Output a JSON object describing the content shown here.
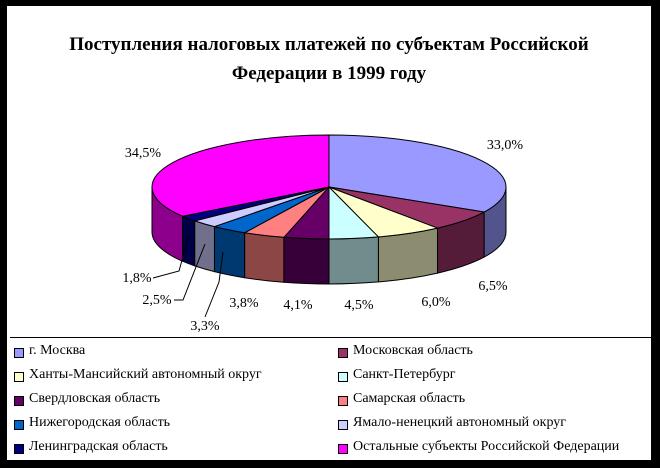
{
  "chart_data": {
    "type": "pie",
    "title": "Поступления налоговых платежей по субъектам Российской Федерации в 1999 году",
    "title_lines": [
      "Поступления налоговых платежей по субъектам Российской",
      "Федерации в 1999 году"
    ],
    "style": "3d",
    "legend_position": "bottom",
    "slices": [
      {
        "name": "г. Москва",
        "value": 33.0,
        "label": "33,0%",
        "color": "#9999FF"
      },
      {
        "name": "Московская область",
        "value": 6.5,
        "label": "6,5%",
        "color": "#993366"
      },
      {
        "name": "Ханты-Мансийский автономный округ",
        "value": 6.0,
        "label": "6,0%",
        "color": "#FFFFCC"
      },
      {
        "name": "Санкт-Петербург",
        "value": 4.5,
        "label": "4,5%",
        "color": "#CCFFFF"
      },
      {
        "name": "Свердловская область",
        "value": 4.1,
        "label": "4,1%",
        "color": "#660066"
      },
      {
        "name": "Самарская область",
        "value": 3.8,
        "label": "3,8%",
        "color": "#FF8080"
      },
      {
        "name": "Нижегородская область",
        "value": 3.3,
        "label": "3,3%",
        "color": "#0066CC"
      },
      {
        "name": "Ямало-ненецкий автономный округ",
        "value": 2.5,
        "label": "2,5%",
        "color": "#CCCCFF"
      },
      {
        "name": "Ленинградская область",
        "value": 1.8,
        "label": "1,8%",
        "color": "#000080"
      },
      {
        "name": "Остальные субъекты Российской Федерации",
        "value": 34.5,
        "label": "34,5%",
        "color": "#FF00FF"
      }
    ]
  }
}
